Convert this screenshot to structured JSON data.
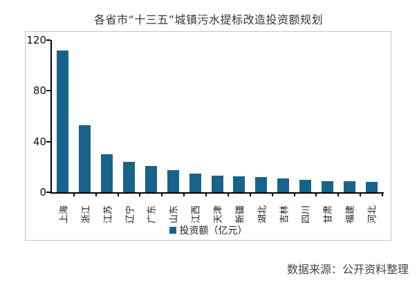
{
  "chart_data": {
    "type": "bar",
    "title": "各省市“十三五”城镇污水提标改造投资额规划",
    "categories": [
      "上海",
      "浙江",
      "江苏",
      "辽宁",
      "广东",
      "山东",
      "江西",
      "天津",
      "新疆",
      "湖北",
      "吉林",
      "四川",
      "甘肃",
      "福建",
      "河北"
    ],
    "values": [
      112,
      53,
      30,
      24,
      20.5,
      17.5,
      15,
      13,
      12.5,
      12,
      11,
      10,
      9,
      8.8,
      8
    ],
    "xlabel": "",
    "ylabel": "",
    "ylim": [
      0,
      120
    ],
    "yticks": [
      0,
      40,
      80,
      120
    ],
    "grid": false,
    "legend_label": "投资额（亿元）",
    "legend_position": "bottom-center",
    "bar_color": "#18638B"
  },
  "footer": {
    "source": "数据来源：公开资料整理"
  },
  "colors": {
    "bar": "#18638B",
    "box_border": "#c6c6c6",
    "axis": "#000000",
    "title_text": "#363636",
    "source_text": "#454545"
  }
}
